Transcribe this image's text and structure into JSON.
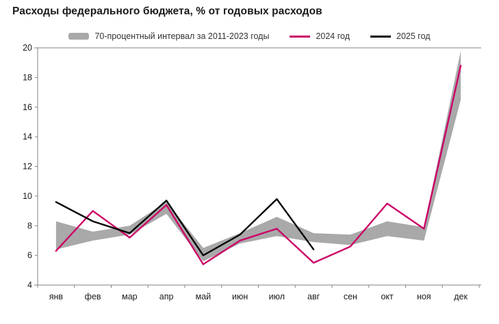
{
  "title": "Расходы федерального бюджета, % от годовых расходов",
  "legend": {
    "band": "70-процентный интервал за 2011-2023 годы",
    "s2024": "2024 год",
    "s2025": "2025 год"
  },
  "colors": {
    "band": "#a9a9a9",
    "s2024": "#cc0066",
    "s2025": "#000000",
    "axis": "#808080",
    "tick_text": "#1a1a1a"
  },
  "chart_data": {
    "type": "line",
    "title": "Расходы федерального бюджета, % от годовых расходов",
    "categories": [
      "янв",
      "фев",
      "мар",
      "апр",
      "май",
      "июн",
      "июл",
      "авг",
      "сен",
      "окт",
      "ноя",
      "дек"
    ],
    "ylim": [
      4,
      20
    ],
    "ytick_step": 2,
    "grid": false,
    "legend_position": "top",
    "band": {
      "name": "70-процентный интервал за 2011-2023 годы",
      "upper": [
        8.3,
        7.6,
        8.0,
        9.6,
        6.5,
        7.5,
        8.6,
        7.5,
        7.4,
        8.3,
        7.9,
        19.8
      ],
      "lower": [
        6.4,
        7.0,
        7.4,
        8.8,
        5.6,
        6.8,
        7.3,
        6.9,
        6.7,
        7.3,
        7.0,
        16.5
      ]
    },
    "series": [
      {
        "name": "2024 год",
        "color": "#cc0066",
        "values": [
          6.3,
          9.0,
          7.2,
          9.4,
          5.4,
          7.0,
          7.8,
          5.5,
          6.6,
          9.5,
          7.8,
          18.8
        ]
      },
      {
        "name": "2025 год",
        "color": "#000000",
        "values": [
          9.6,
          8.3,
          7.5,
          9.7,
          6.0,
          7.4,
          9.8,
          6.4,
          null,
          null,
          null,
          null
        ]
      }
    ]
  }
}
